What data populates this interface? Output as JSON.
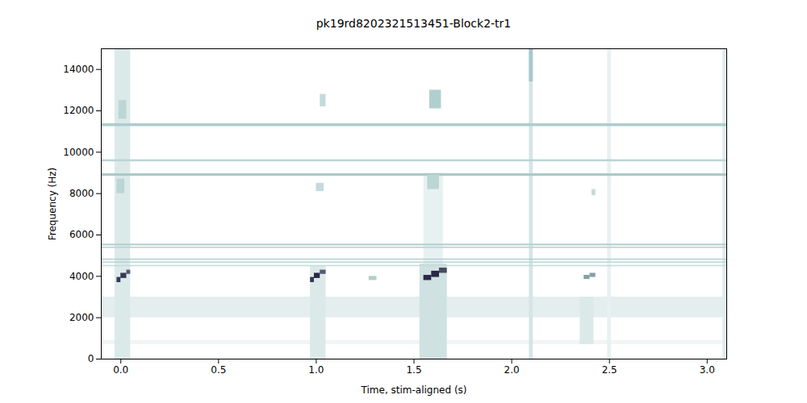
{
  "chart_data": {
    "type": "heatmap",
    "title": "pk19rd8202321513451-Block2-tr1",
    "x_label": "Time, stim-aligned (s)",
    "y_label": "Frequency (Hz)",
    "xlim": [
      -0.1,
      3.1
    ],
    "ylim": [
      0,
      15000
    ],
    "xticks": [
      {
        "value": 0,
        "label": "0.0"
      },
      0.5,
      {
        "value": 1,
        "label": "1.0"
      },
      1.5,
      {
        "value": 2,
        "label": "2.0"
      },
      2.5,
      {
        "value": 3,
        "label": "3.0"
      }
    ],
    "yticks": [
      0,
      2000,
      4000,
      6000,
      8000,
      10000,
      12000,
      14000
    ],
    "zlim": [
      0,
      1
    ],
    "grid": false,
    "cells": [
      [
        -0.1,
        3.1,
        2000,
        3000,
        0.14
      ],
      [
        -0.1,
        3.1,
        700,
        900,
        0.08
      ],
      [
        -0.03,
        0.05,
        0,
        15000,
        0.18
      ],
      [
        0.97,
        1.05,
        0,
        4500,
        0.18
      ],
      [
        1.53,
        1.67,
        0,
        4600,
        0.25
      ],
      [
        1.55,
        1.65,
        4600,
        9000,
        0.12
      ],
      [
        2.35,
        2.42,
        700,
        3000,
        0.18
      ],
      [
        2.09,
        2.11,
        0,
        15000,
        0.22
      ],
      [
        2.09,
        2.11,
        13400,
        15000,
        0.45
      ],
      [
        2.49,
        2.51,
        0,
        15000,
        0.12
      ],
      [
        3.08,
        3.1,
        0,
        15000,
        0.15
      ],
      [
        -0.1,
        3.1,
        11240,
        11380,
        0.42
      ],
      [
        -0.1,
        3.1,
        9540,
        9640,
        0.35
      ],
      [
        -0.1,
        3.1,
        8840,
        8960,
        0.45
      ],
      [
        -0.1,
        3.1,
        5480,
        5560,
        0.4
      ],
      [
        -0.1,
        3.1,
        5350,
        5420,
        0.35
      ],
      [
        -0.1,
        3.1,
        4780,
        4840,
        0.4
      ],
      [
        -0.1,
        3.1,
        4640,
        4700,
        0.35
      ],
      [
        -0.1,
        3.1,
        4470,
        4530,
        0.3
      ],
      [
        -0.02,
        0.02,
        8000,
        8700,
        0.35
      ],
      [
        -0.01,
        0.03,
        11600,
        12500,
        0.35
      ],
      [
        1.0,
        1.04,
        8100,
        8500,
        0.3
      ],
      [
        1.02,
        1.05,
        12200,
        12800,
        0.3
      ],
      [
        1.57,
        1.63,
        8200,
        8900,
        0.35
      ],
      [
        1.58,
        1.64,
        12100,
        13000,
        0.4
      ],
      [
        2.41,
        2.43,
        7900,
        8200,
        0.3
      ],
      [
        1.27,
        1.31,
        3800,
        4000,
        0.4
      ],
      [
        2.37,
        2.4,
        3850,
        4050,
        0.6
      ],
      [
        2.4,
        2.43,
        3950,
        4150,
        0.6
      ],
      [
        -0.02,
        0.0,
        3700,
        3950,
        0.9
      ],
      [
        0.0,
        0.03,
        3900,
        4150,
        0.9
      ],
      [
        0.03,
        0.05,
        4100,
        4300,
        0.8
      ],
      [
        0.97,
        0.99,
        3700,
        3950,
        0.9
      ],
      [
        0.99,
        1.02,
        3900,
        4150,
        0.95
      ],
      [
        1.02,
        1.05,
        4100,
        4300,
        0.8
      ],
      [
        1.55,
        1.59,
        3800,
        4050,
        0.95
      ],
      [
        1.59,
        1.63,
        3950,
        4250,
        0.95
      ],
      [
        1.63,
        1.67,
        4150,
        4400,
        0.85
      ]
    ]
  }
}
